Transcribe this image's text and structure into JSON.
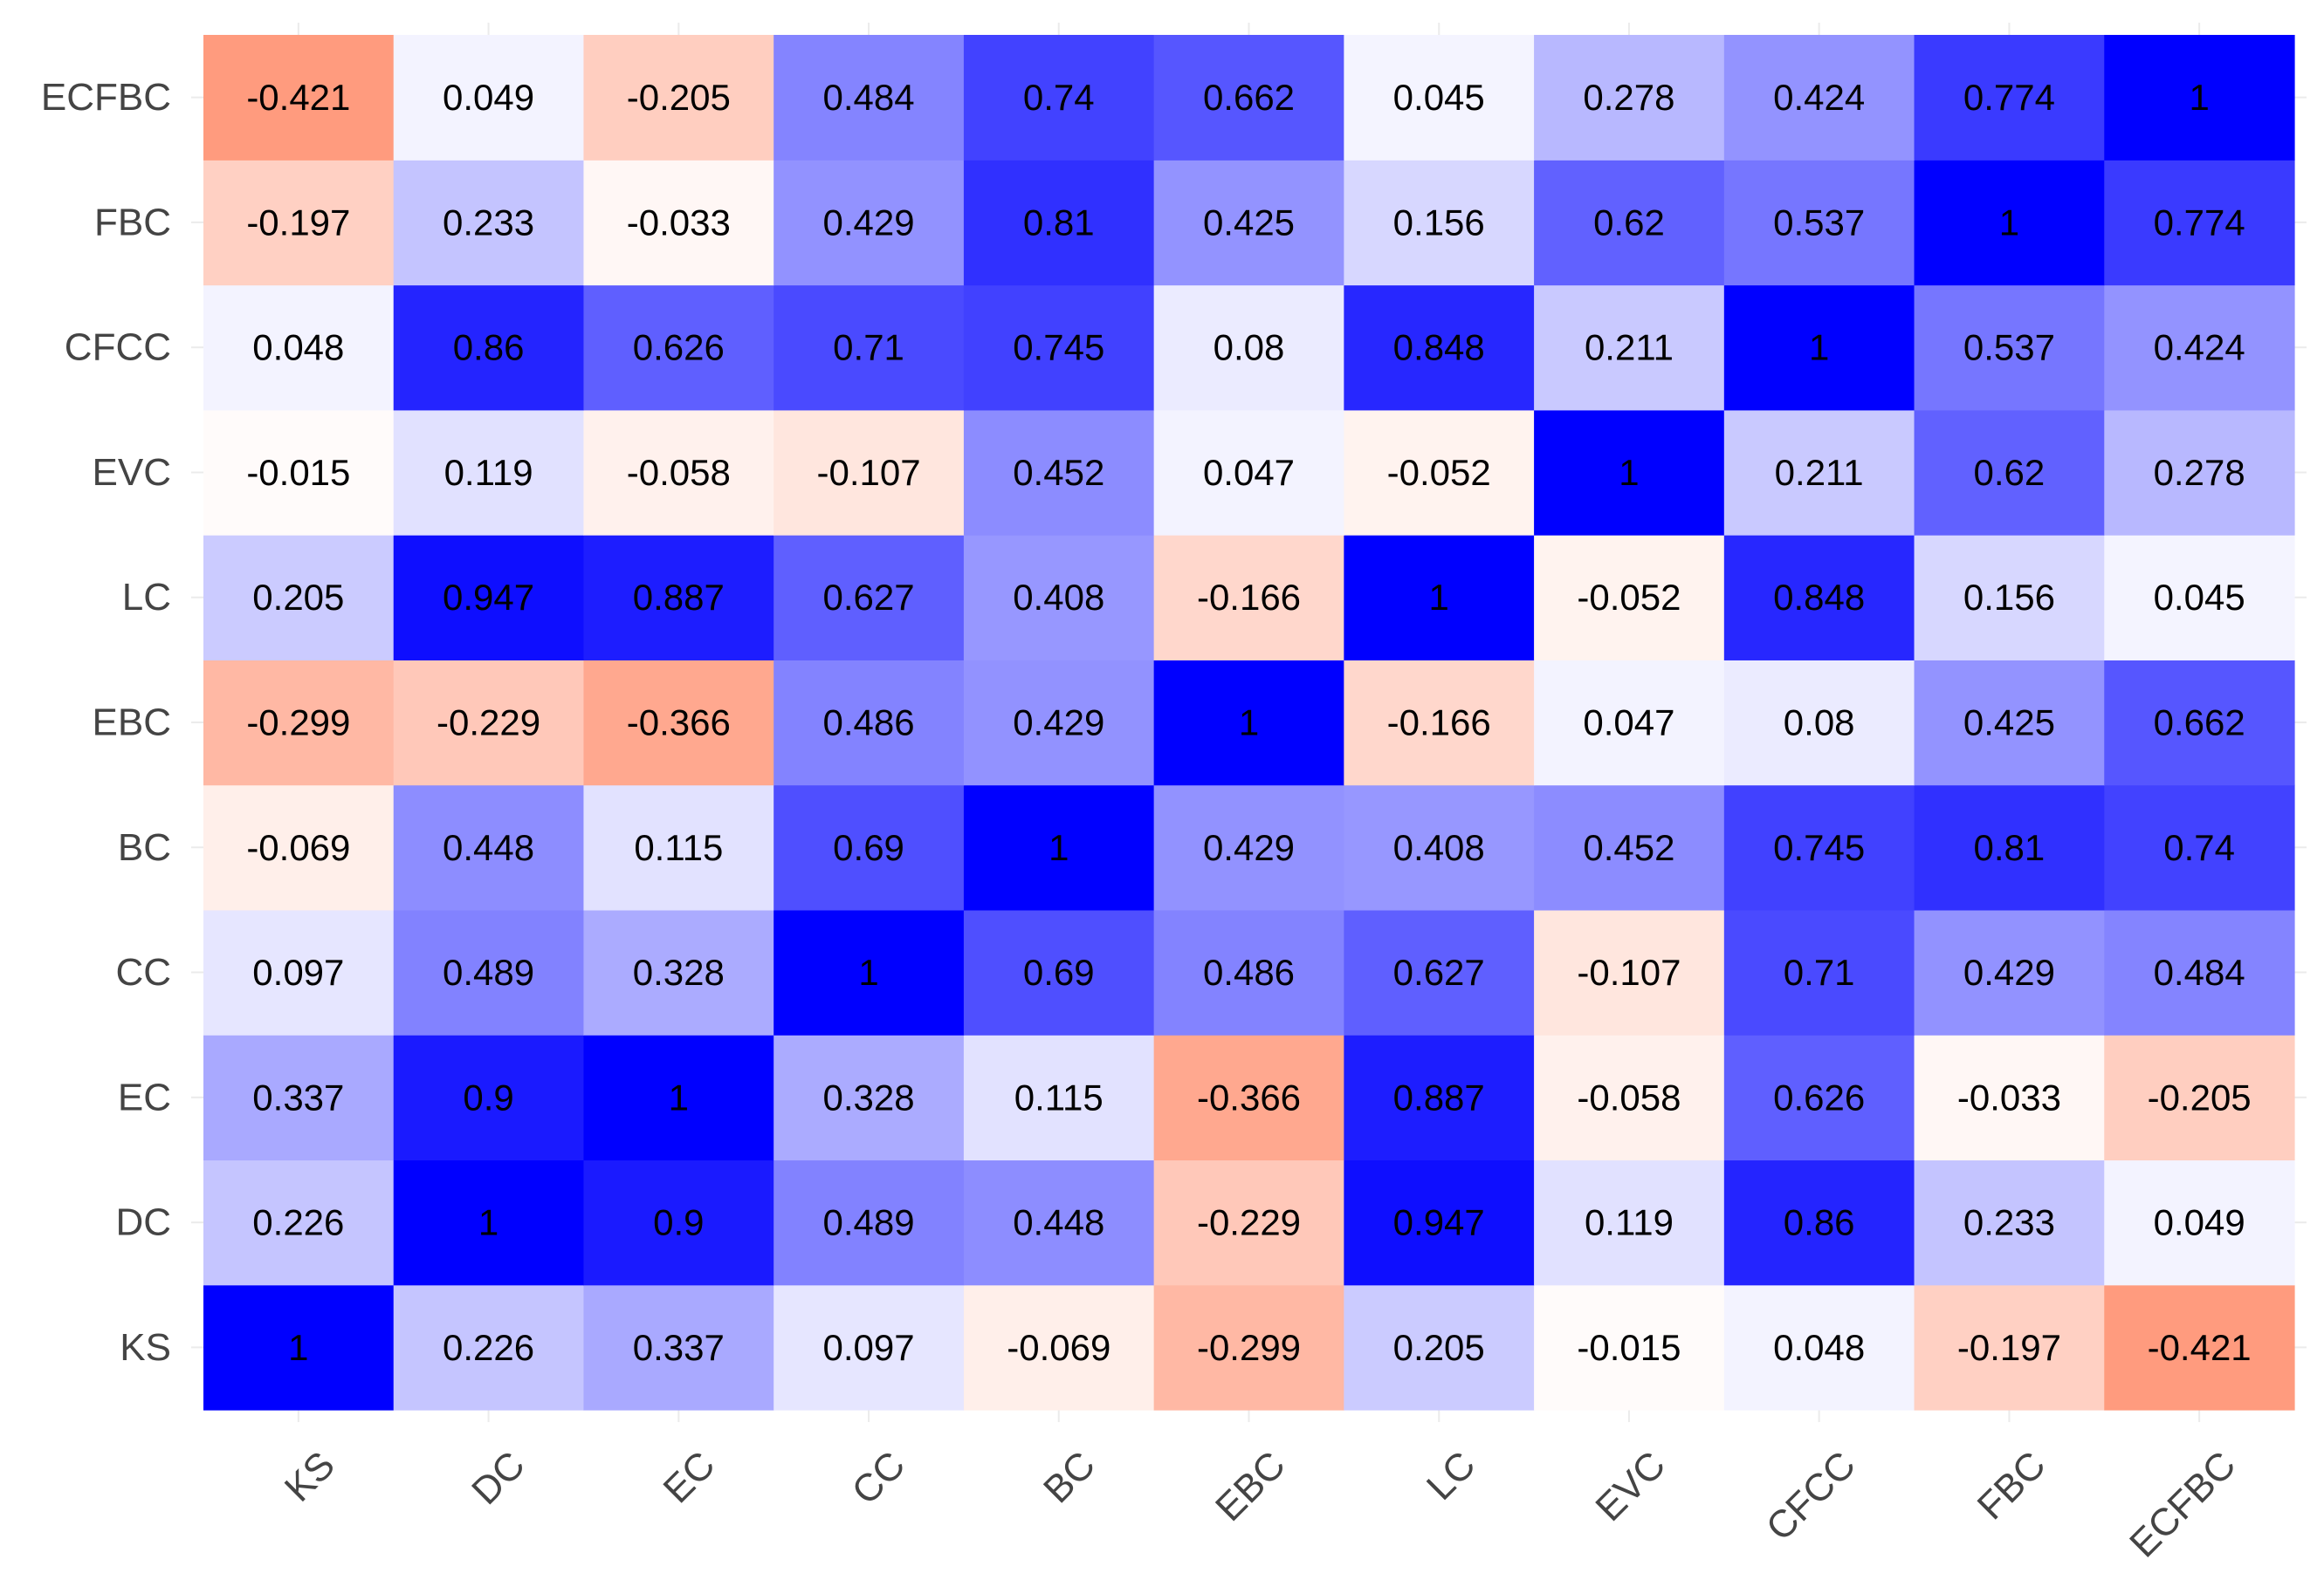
{
  "chart_data": {
    "type": "heatmap",
    "title": "",
    "xlabel": "",
    "ylabel": "",
    "x_categories": [
      "KS",
      "DC",
      "EC",
      "CC",
      "BC",
      "EBC",
      "LC",
      "EVC",
      "CFCC",
      "FBC",
      "ECFBC"
    ],
    "y_categories": [
      "KS",
      "DC",
      "EC",
      "CC",
      "BC",
      "EBC",
      "LC",
      "EVC",
      "CFCC",
      "FBC",
      "ECFBC"
    ],
    "values": [
      [
        1,
        0.226,
        0.337,
        0.097,
        -0.069,
        -0.299,
        0.205,
        -0.015,
        0.048,
        -0.197,
        -0.421
      ],
      [
        0.226,
        1,
        0.9,
        0.489,
        0.448,
        -0.229,
        0.947,
        0.119,
        0.86,
        0.233,
        0.049
      ],
      [
        0.337,
        0.9,
        1,
        0.328,
        0.115,
        -0.366,
        0.887,
        -0.058,
        0.626,
        -0.033,
        -0.205
      ],
      [
        0.097,
        0.489,
        0.328,
        1,
        0.69,
        0.486,
        0.627,
        -0.107,
        0.71,
        0.429,
        0.484
      ],
      [
        -0.069,
        0.448,
        0.115,
        0.69,
        1,
        0.429,
        0.408,
        0.452,
        0.745,
        0.81,
        0.74
      ],
      [
        -0.299,
        -0.229,
        -0.366,
        0.486,
        0.429,
        1,
        -0.166,
        0.047,
        0.08,
        0.425,
        0.662
      ],
      [
        0.205,
        0.947,
        0.887,
        0.627,
        0.408,
        -0.166,
        1,
        -0.052,
        0.848,
        0.156,
        0.045
      ],
      [
        -0.015,
        0.119,
        -0.058,
        -0.107,
        0.452,
        0.047,
        -0.052,
        1,
        0.211,
        0.62,
        0.278
      ],
      [
        0.048,
        0.86,
        0.626,
        0.71,
        0.745,
        0.08,
        0.848,
        0.211,
        1,
        0.537,
        0.424
      ],
      [
        -0.197,
        0.233,
        -0.033,
        0.429,
        0.81,
        0.425,
        0.156,
        0.62,
        0.537,
        1,
        0.774
      ],
      [
        -0.421,
        0.049,
        -0.205,
        0.484,
        0.74,
        0.662,
        0.045,
        0.278,
        0.424,
        0.774,
        1
      ]
    ],
    "color_scale": {
      "low_color": "#ff8866",
      "mid_color": "#ffffff",
      "high_color": "#0000ff",
      "low_value": -0.5,
      "mid_value": 0,
      "high_value": 1
    },
    "legend": "none",
    "grid": true
  }
}
